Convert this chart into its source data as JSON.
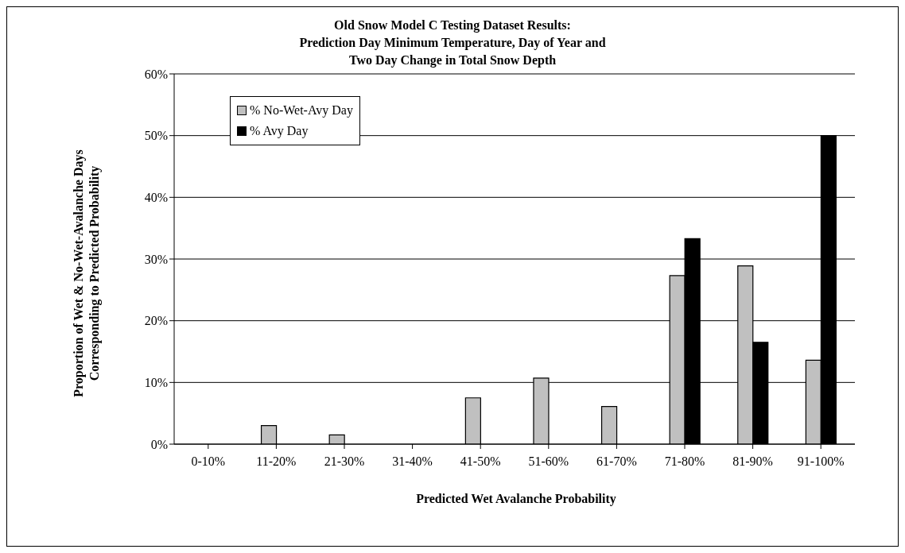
{
  "chart_data": {
    "type": "bar",
    "title": "Old Snow Model C Testing Dataset Results:\nPrediction Day Minimum Temperature, Day of Year and\nTwo Day Change in Total Snow Depth",
    "xlabel": "Predicted Wet Avalanche Probability",
    "ylabel": "Proportion of Wet & No-Wet-Avalanche Days Corresponding to Predicted Probability",
    "categories": [
      "0-10%",
      "11-20%",
      "21-30%",
      "31-40%",
      "41-50%",
      "51-60%",
      "61-70%",
      "71-80%",
      "81-90%",
      "91-100%"
    ],
    "series": [
      {
        "name": "% No-Wet-Avy Day",
        "color": "#c0c0c0",
        "values": [
          0,
          3.0,
          1.5,
          0,
          7.5,
          10.7,
          6.1,
          27.3,
          28.9,
          13.6
        ]
      },
      {
        "name": "% Avy Day",
        "color": "#000000",
        "values": [
          0,
          0,
          0,
          0,
          0,
          0,
          0,
          33.3,
          16.5,
          50
        ]
      }
    ],
    "ylim": [
      0,
      60
    ],
    "yticks": [
      {
        "value": 0,
        "label": "0%"
      },
      {
        "value": 10,
        "label": "10%"
      },
      {
        "value": 20,
        "label": "20%"
      },
      {
        "value": 30,
        "label": "30%"
      },
      {
        "value": 40,
        "label": "40%"
      },
      {
        "value": 50,
        "label": "50%"
      },
      {
        "value": 60,
        "label": "60%"
      }
    ],
    "grid": "y",
    "legend": "top left"
  }
}
